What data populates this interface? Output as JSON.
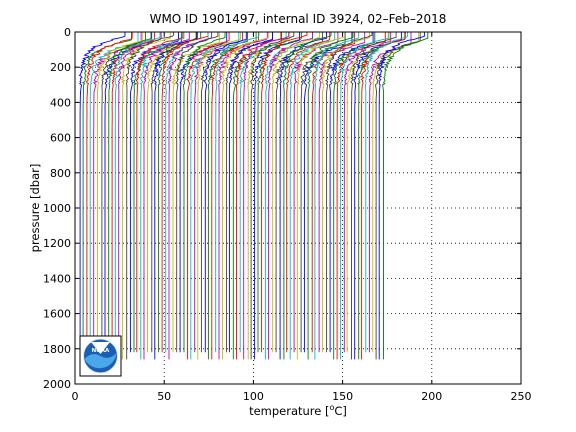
{
  "chart_data": {
    "type": "line",
    "title": "WMO ID 1901497, internal ID 3924, 02–Feb–2018",
    "xlabel_main": "temperature [",
    "xlabel_sup": "o",
    "xlabel_tail": "C]",
    "ylabel": "pressure [dbar]",
    "xlim": [
      0,
      250
    ],
    "ylim": [
      0,
      2000
    ],
    "y_reversed": true,
    "x_ticks": [
      0,
      50,
      100,
      150,
      200,
      250
    ],
    "y_ticks": [
      0,
      200,
      400,
      600,
      800,
      1000,
      1200,
      1400,
      1600,
      1800,
      2000
    ],
    "grid": "dotted",
    "profile_count": 86,
    "profile_offset_step": 2,
    "profile_first_surface_temp": 30,
    "profile_deep_temp_offset": 2.5,
    "profile_max_pressure": 1900,
    "series_colors": [
      "#0000ff",
      "#008000",
      "#ff0000",
      "#00bfbf",
      "#bf00bf",
      "#bfbf00",
      "#404040"
    ],
    "logo": {
      "name": "noaa-logo",
      "text": "NOAA"
    }
  }
}
